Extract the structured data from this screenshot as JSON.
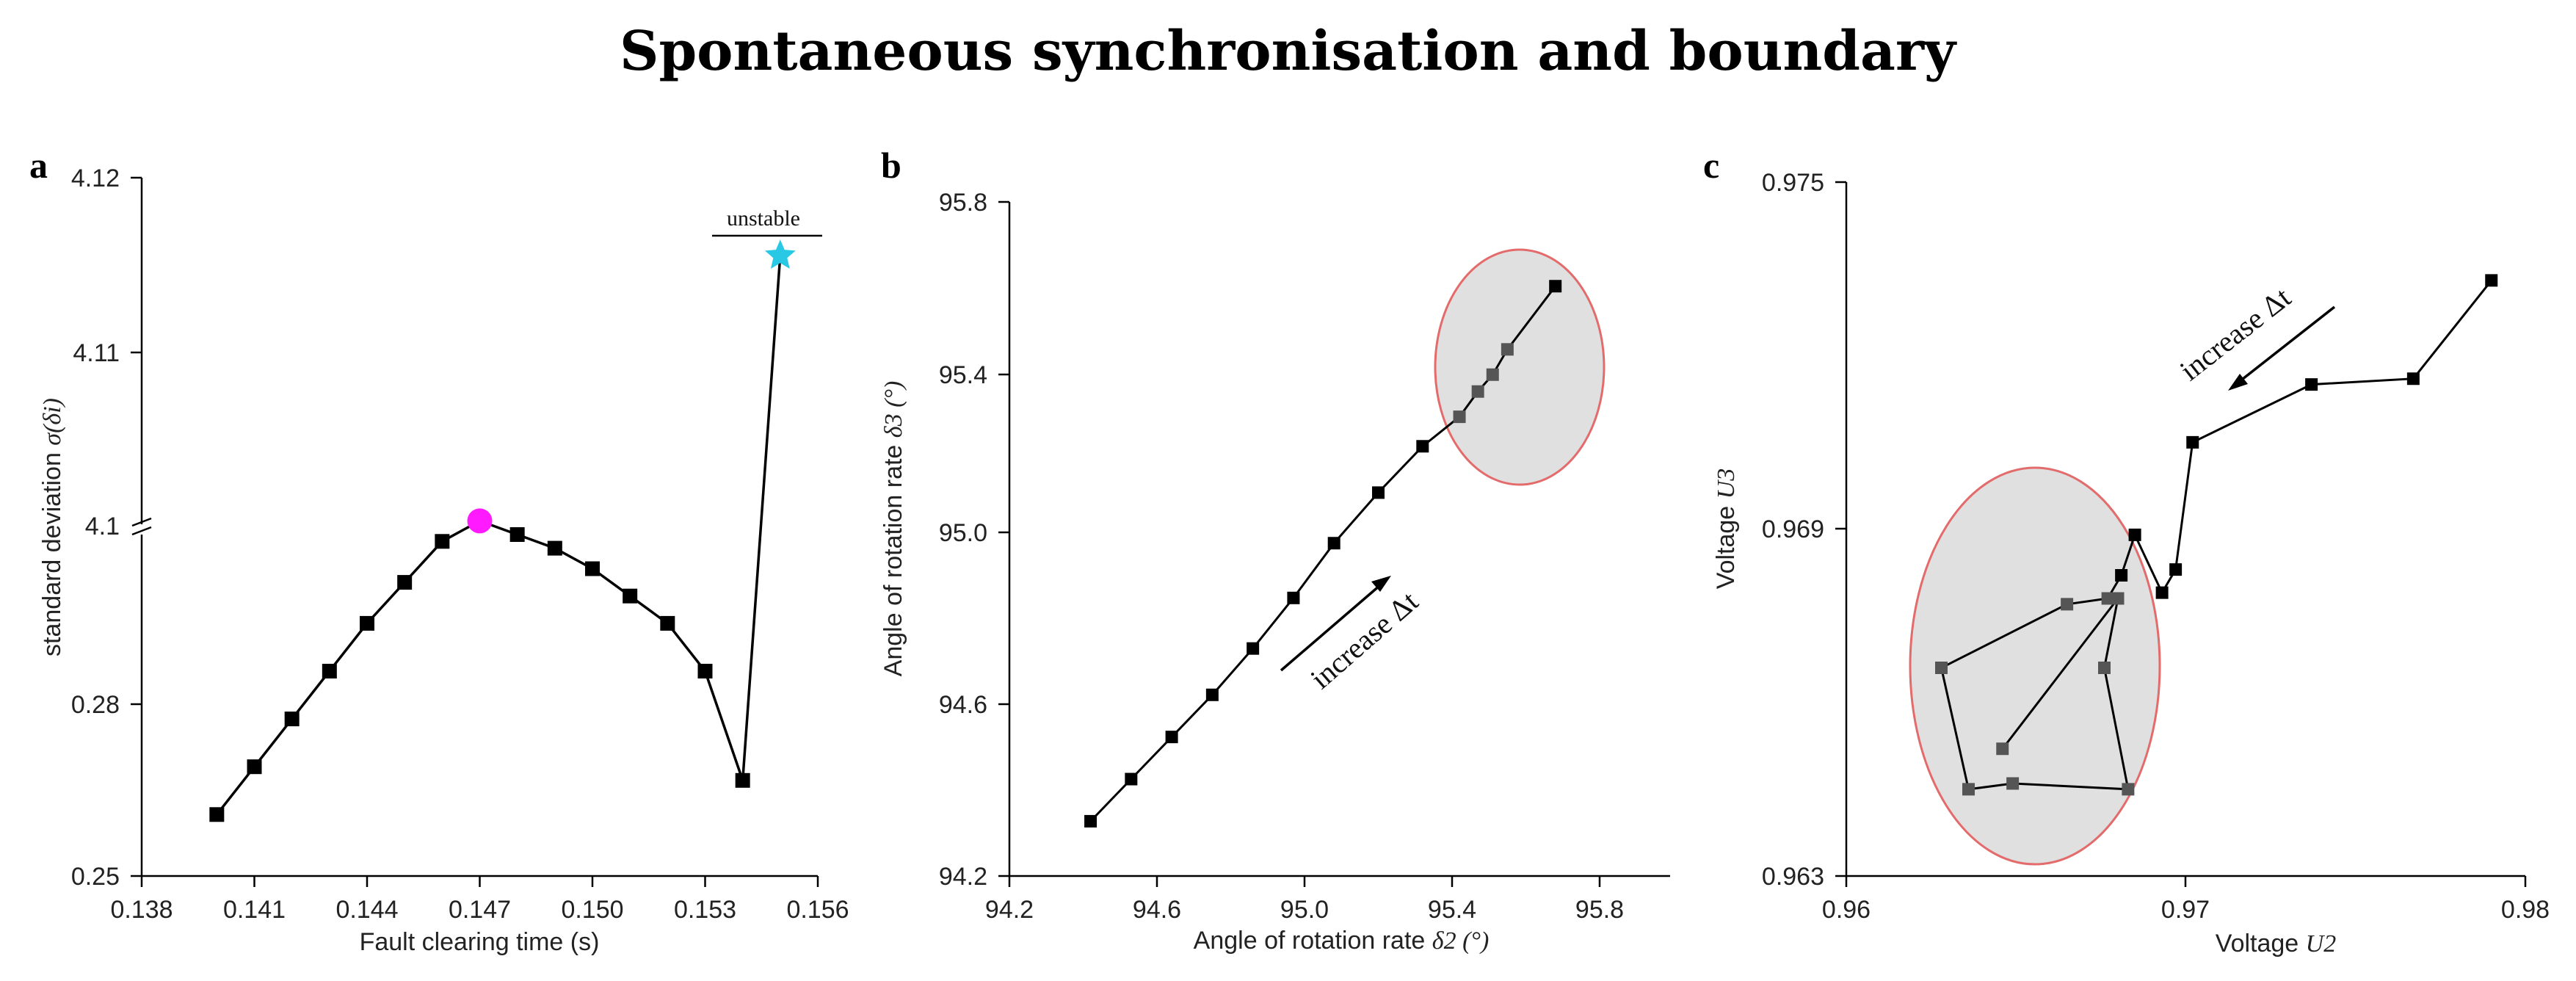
{
  "title": "Spontaneous synchronisation and boundary",
  "chart_data": [
    {
      "panel": "a",
      "type": "line",
      "xlabel": "Fault clearing time (s)",
      "ylabel_prefix": "standard deviation ",
      "ylabel_symbol": "σ(δi)",
      "x_ticks": [
        "0.138",
        "0.141",
        "0.144",
        "0.147",
        "0.150",
        "0.153",
        "0.156"
      ],
      "y_ticks": [
        "0.25",
        "0.28",
        "4.1",
        "4.11",
        "4.12"
      ],
      "xlim": [
        0.138,
        0.156
      ],
      "y_axis_break": true,
      "lower_ylim": [
        0.25,
        0.3
      ],
      "upper_ylim": [
        4.1,
        4.12
      ],
      "x": [
        0.14,
        0.141,
        0.142,
        0.143,
        0.144,
        0.145,
        0.146,
        0.147,
        0.148,
        0.149,
        0.15,
        0.151,
        0.152,
        0.153,
        0.154,
        0.155
      ],
      "y": [
        0.259,
        0.266,
        0.273,
        0.28,
        0.287,
        0.293,
        0.299,
        0.302,
        0.3,
        0.298,
        0.295,
        0.291,
        0.287,
        0.28,
        0.264,
        4.1155
      ],
      "highlight": [
        {
          "x": 0.147,
          "y": 0.302,
          "marker": "circle",
          "color": "#ff1aff"
        },
        {
          "x": 0.155,
          "y": 4.1155,
          "marker": "star",
          "color": "#29c9e6"
        }
      ],
      "annotations": [
        "unstable"
      ]
    },
    {
      "panel": "b",
      "type": "line",
      "xlabel_prefix": "Angle of rotation rate ",
      "xlabel_symbol": "δ2 (°)",
      "ylabel_prefix": "Angle of rotation rate ",
      "ylabel_symbol": "δ3 (°)",
      "x_ticks": [
        "94.2",
        "94.6",
        "95.0",
        "95.4",
        "95.8"
      ],
      "y_ticks": [
        "94.2",
        "94.6",
        "95.0",
        "95.4",
        "95.8"
      ],
      "xlim": [
        94.2,
        95.85
      ],
      "ylim": [
        94.2,
        95.8
      ],
      "x": [
        94.42,
        94.53,
        94.64,
        94.75,
        94.86,
        94.97,
        95.08,
        95.2,
        95.32,
        95.42,
        95.47,
        95.51,
        95.55,
        95.68
      ],
      "y": [
        94.33,
        94.43,
        94.53,
        94.63,
        94.74,
        94.86,
        94.99,
        95.11,
        95.22,
        95.29,
        95.35,
        95.39,
        95.45,
        95.6
      ],
      "highlight_region": "ellipse",
      "annotations": [
        "increase Δt"
      ]
    },
    {
      "panel": "c",
      "type": "line",
      "xlabel_prefix": "Voltage ",
      "xlabel_symbol": "U2",
      "ylabel_prefix": "Voltage ",
      "ylabel_symbol": "U3",
      "x_ticks": [
        "0.96",
        "0.97",
        "0.98"
      ],
      "y_ticks": [
        "0.963",
        "0.969",
        "0.975"
      ],
      "xlim": [
        0.96,
        0.98
      ],
      "ylim": [
        0.963,
        0.975
      ],
      "x": [
        0.979,
        0.9767,
        0.9737,
        0.9702,
        0.9697,
        0.9693,
        0.9685,
        0.9681,
        0.9677,
        0.9665,
        0.9628,
        0.9636,
        0.9649,
        0.9683,
        0.9676,
        0.968,
        0.9646
      ],
      "y": [
        0.9733,
        0.9716,
        0.9715,
        0.9705,
        0.9683,
        0.9679,
        0.9689,
        0.9682,
        0.9678,
        0.9677,
        0.9666,
        0.9645,
        0.9646,
        0.9645,
        0.9666,
        0.9678,
        0.9652
      ],
      "highlight_region": "ellipse",
      "annotations": [
        "increase Δt"
      ]
    }
  ]
}
